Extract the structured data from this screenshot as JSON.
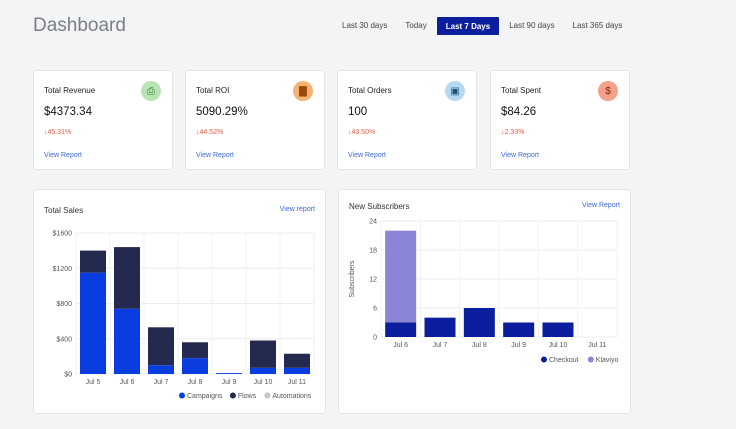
{
  "header": {
    "title": "Dashboard",
    "ranges": [
      "Last 30 days",
      "Today",
      "Last 7 Days",
      "Last 90 days",
      "Last 365 days"
    ],
    "active_range": "Last 7 Days"
  },
  "kpis": [
    {
      "title": "Total Revenue",
      "value": "$4373.34",
      "change": "↓45.31%",
      "link": "View Report",
      "icon": "money-icon",
      "icon_glyph": "⎙",
      "icon_bg": "#b8e3b2",
      "icon_color": "#2f7d32"
    },
    {
      "title": "Total ROI",
      "value": "5090.29%",
      "change": "↓44.52%",
      "link": "View Report",
      "icon": "bar-chart-icon",
      "icon_glyph": "▇",
      "icon_bg": "#f6b273",
      "icon_color": "#9a4a0a"
    },
    {
      "title": "Total Orders",
      "value": "100",
      "change": "↓43.50%",
      "link": "View Report",
      "icon": "box-icon",
      "icon_glyph": "▣",
      "icon_bg": "#b5d9f3",
      "icon_color": "#1e4f7a"
    },
    {
      "title": "Total Spent",
      "value": "$84.26",
      "change": "↓2.33%",
      "link": "View Report",
      "icon": "money-bag-icon",
      "icon_glyph": "$",
      "icon_bg": "#f4a08a",
      "icon_color": "#7a1f0a"
    }
  ],
  "colors": {
    "campaigns": "#0a3de0",
    "flows": "#23294f",
    "automations": "#c8c8cc",
    "checkout": "#0b1f9e",
    "klaviyo": "#8b85d8"
  },
  "sales_card": {
    "title": "Total Sales",
    "link": "View report"
  },
  "subs_card": {
    "title": "New Subscribers",
    "link": "View Report"
  },
  "chart_data": [
    {
      "type": "bar",
      "stacked": true,
      "title": "Total Sales",
      "categories": [
        "Jul 5",
        "Jul 6",
        "Jul 7",
        "Jul 8",
        "Jul 9",
        "Jul 10",
        "Jul 11"
      ],
      "y_ticks": [
        "$0",
        "$400",
        "$800",
        "$1200",
        "$1600"
      ],
      "ylim": [
        0,
        1600
      ],
      "series": [
        {
          "name": "Campaigns",
          "values": [
            1150,
            740,
            100,
            180,
            10,
            70,
            70
          ]
        },
        {
          "name": "Flows",
          "values": [
            250,
            700,
            430,
            180,
            0,
            310,
            160
          ]
        },
        {
          "name": "Automations",
          "values": [
            0,
            0,
            0,
            0,
            0,
            0,
            0
          ]
        }
      ],
      "legend": "bottom-right"
    },
    {
      "type": "bar",
      "stacked": true,
      "title": "New Subscribers",
      "ylabel": "Subscribers",
      "categories": [
        "Jul 6",
        "Jul 7",
        "Jul 8",
        "Jul 9",
        "Jul 10",
        "Jul 11"
      ],
      "y_ticks": [
        "0",
        "6",
        "12",
        "18",
        "24"
      ],
      "ylim": [
        0,
        24
      ],
      "series": [
        {
          "name": "Checkout",
          "values": [
            3,
            4,
            6,
            3,
            3,
            0
          ]
        },
        {
          "name": "Klaviyo",
          "values": [
            19,
            0,
            0,
            0,
            0,
            0
          ]
        }
      ],
      "legend": "bottom-right"
    }
  ]
}
